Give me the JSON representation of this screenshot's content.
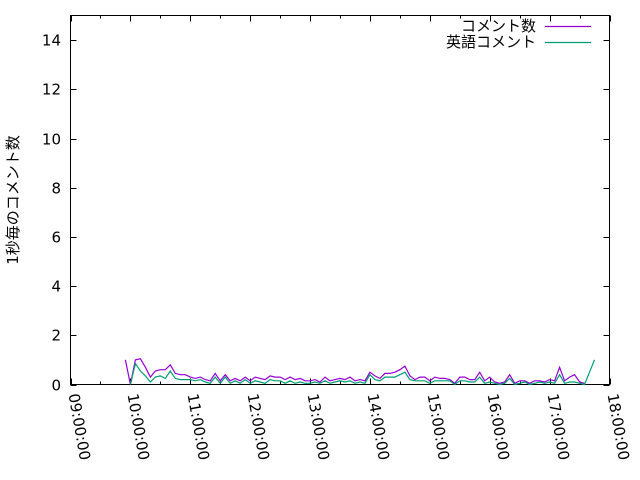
{
  "chart_data": {
    "type": "line",
    "title": "",
    "xlabel": "",
    "ylabel": "1秒毎のコメント数",
    "xlim": [
      "09:00:00",
      "18:00:00"
    ],
    "ylim": [
      0,
      15
    ],
    "x_ticks": [
      "09:00:00",
      "10:00:00",
      "11:00:00",
      "12:00:00",
      "13:00:00",
      "14:00:00",
      "15:00:00",
      "16:00:00",
      "17:00:00",
      "18:00:00"
    ],
    "y_ticks": [
      0,
      2,
      4,
      6,
      8,
      10,
      12,
      14
    ],
    "grid": false,
    "legend_position": "top-right",
    "x": [
      "09:55",
      "10:00",
      "10:05",
      "10:10",
      "10:15",
      "10:20",
      "10:25",
      "10:30",
      "10:35",
      "10:40",
      "10:45",
      "10:50",
      "10:55",
      "11:00",
      "11:05",
      "11:10",
      "11:15",
      "11:20",
      "11:25",
      "11:30",
      "11:35",
      "11:40",
      "11:45",
      "11:50",
      "11:55",
      "12:00",
      "12:05",
      "12:10",
      "12:15",
      "12:20",
      "12:25",
      "12:30",
      "12:35",
      "12:40",
      "12:45",
      "12:50",
      "12:55",
      "13:00",
      "13:05",
      "13:10",
      "13:15",
      "13:20",
      "13:25",
      "13:30",
      "13:35",
      "13:40",
      "13:45",
      "13:50",
      "13:55",
      "14:00",
      "14:05",
      "14:10",
      "14:15",
      "14:20",
      "14:25",
      "14:30",
      "14:35",
      "14:40",
      "14:45",
      "14:50",
      "14:55",
      "15:00",
      "15:05",
      "15:10",
      "15:15",
      "15:20",
      "15:25",
      "15:30",
      "15:35",
      "15:40",
      "15:45",
      "15:50",
      "15:55",
      "16:00",
      "16:05",
      "16:10",
      "16:15",
      "16:20",
      "16:25",
      "16:30",
      "16:35",
      "16:40",
      "16:45",
      "16:50",
      "16:55",
      "17:00",
      "17:05",
      "17:10",
      "17:15",
      "17:20",
      "17:25",
      "17:30",
      "17:35",
      "17:40",
      "17:45"
    ],
    "series": [
      {
        "name": "コメント数",
        "color": "#9400d3",
        "values": [
          1.0,
          0.0,
          1.0,
          1.05,
          0.7,
          0.3,
          0.55,
          0.6,
          0.6,
          0.8,
          0.45,
          0.4,
          0.4,
          0.3,
          0.25,
          0.3,
          0.2,
          0.15,
          0.45,
          0.15,
          0.4,
          0.15,
          0.25,
          0.15,
          0.3,
          0.15,
          0.3,
          0.25,
          0.2,
          0.35,
          0.3,
          0.3,
          0.2,
          0.3,
          0.2,
          0.25,
          0.15,
          0.15,
          0.2,
          0.1,
          0.3,
          0.15,
          0.2,
          0.25,
          0.2,
          0.3,
          0.15,
          0.2,
          0.15,
          0.5,
          0.35,
          0.25,
          0.45,
          0.45,
          0.5,
          0.6,
          0.75,
          0.35,
          0.2,
          0.3,
          0.3,
          0.15,
          0.3,
          0.25,
          0.25,
          0.2,
          0.05,
          0.3,
          0.3,
          0.2,
          0.2,
          0.5,
          0.15,
          0.3,
          0.1,
          0.05,
          0.1,
          0.4,
          0.05,
          0.15,
          0.15,
          0.05,
          0.15,
          0.15,
          0.1,
          0.2,
          0.15,
          0.7,
          0.15,
          0.3,
          0.4,
          0.1,
          0.05,
          null,
          null
        ]
      },
      {
        "name": "英語コメント",
        "color": "#009e73",
        "values": [
          null,
          0.0,
          0.85,
          0.55,
          0.35,
          0.1,
          0.3,
          0.35,
          0.25,
          0.55,
          0.25,
          0.2,
          0.2,
          0.2,
          0.15,
          0.2,
          0.1,
          0.05,
          0.3,
          0.05,
          0.3,
          0.05,
          0.15,
          0.05,
          0.2,
          0.05,
          0.15,
          0.1,
          0.05,
          0.2,
          0.15,
          0.15,
          0.05,
          0.15,
          0.05,
          0.1,
          0.05,
          0.05,
          0.1,
          0.05,
          0.15,
          0.05,
          0.1,
          0.15,
          0.1,
          0.15,
          0.05,
          0.1,
          0.05,
          0.4,
          0.2,
          0.15,
          0.3,
          0.3,
          0.3,
          0.4,
          0.5,
          0.2,
          0.15,
          0.15,
          0.15,
          0.05,
          0.15,
          0.15,
          0.15,
          0.15,
          0.0,
          0.15,
          0.15,
          0.1,
          0.1,
          0.3,
          0.05,
          0.1,
          0.05,
          0.0,
          0.05,
          0.25,
          0.0,
          0.05,
          0.1,
          0.0,
          0.05,
          0.1,
          0.05,
          0.1,
          0.05,
          0.4,
          0.05,
          0.1,
          0.1,
          0.05,
          0.0,
          0.5,
          1.0
        ]
      }
    ]
  }
}
